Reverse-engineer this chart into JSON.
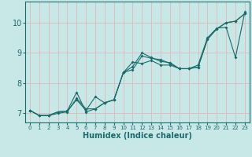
{
  "xlabel": "Humidex (Indice chaleur)",
  "bg_color": "#c8e8e8",
  "line_color": "#1a6b6b",
  "grid_color": "#e0b8b8",
  "xlim": [
    -0.5,
    23.5
  ],
  "ylim": [
    6.7,
    10.7
  ],
  "xticks": [
    0,
    1,
    2,
    3,
    4,
    5,
    6,
    7,
    8,
    9,
    10,
    11,
    12,
    13,
    14,
    15,
    16,
    17,
    18,
    19,
    20,
    21,
    22,
    23
  ],
  "yticks": [
    7,
    8,
    9,
    10
  ],
  "series1_x": [
    0,
    1,
    2,
    3,
    4,
    5,
    6,
    7,
    8,
    9,
    10,
    11,
    12,
    13,
    14,
    15,
    16,
    17,
    18,
    19,
    20,
    21,
    22,
    23
  ],
  "series1_y": [
    7.1,
    6.93,
    6.93,
    7.0,
    7.05,
    7.5,
    7.15,
    7.15,
    7.35,
    7.45,
    8.35,
    8.45,
    8.9,
    8.82,
    8.78,
    8.65,
    8.48,
    8.48,
    8.53,
    9.45,
    9.8,
    10.0,
    10.05,
    10.3
  ],
  "series2_x": [
    0,
    1,
    2,
    3,
    4,
    5,
    6,
    7,
    8,
    9,
    10,
    11,
    12,
    13,
    14,
    15,
    16,
    17,
    18,
    19,
    20,
    21,
    22,
    23
  ],
  "series2_y": [
    7.1,
    6.93,
    6.93,
    7.05,
    7.08,
    7.7,
    7.05,
    7.15,
    7.35,
    7.45,
    8.35,
    8.7,
    8.65,
    8.75,
    8.6,
    8.6,
    8.48,
    8.48,
    8.53,
    9.45,
    9.8,
    10.0,
    10.05,
    10.3
  ],
  "series3_x": [
    0,
    1,
    2,
    3,
    4,
    5,
    6,
    7,
    8,
    9,
    10,
    11,
    12,
    13,
    14,
    15,
    16,
    17,
    18,
    19,
    20,
    21,
    22,
    23
  ],
  "series3_y": [
    7.1,
    6.93,
    6.93,
    7.05,
    7.08,
    7.45,
    7.1,
    7.55,
    7.35,
    7.45,
    8.35,
    8.55,
    9.0,
    8.85,
    8.72,
    8.68,
    8.48,
    8.48,
    8.6,
    9.5,
    9.82,
    9.85,
    8.85,
    10.35
  ]
}
